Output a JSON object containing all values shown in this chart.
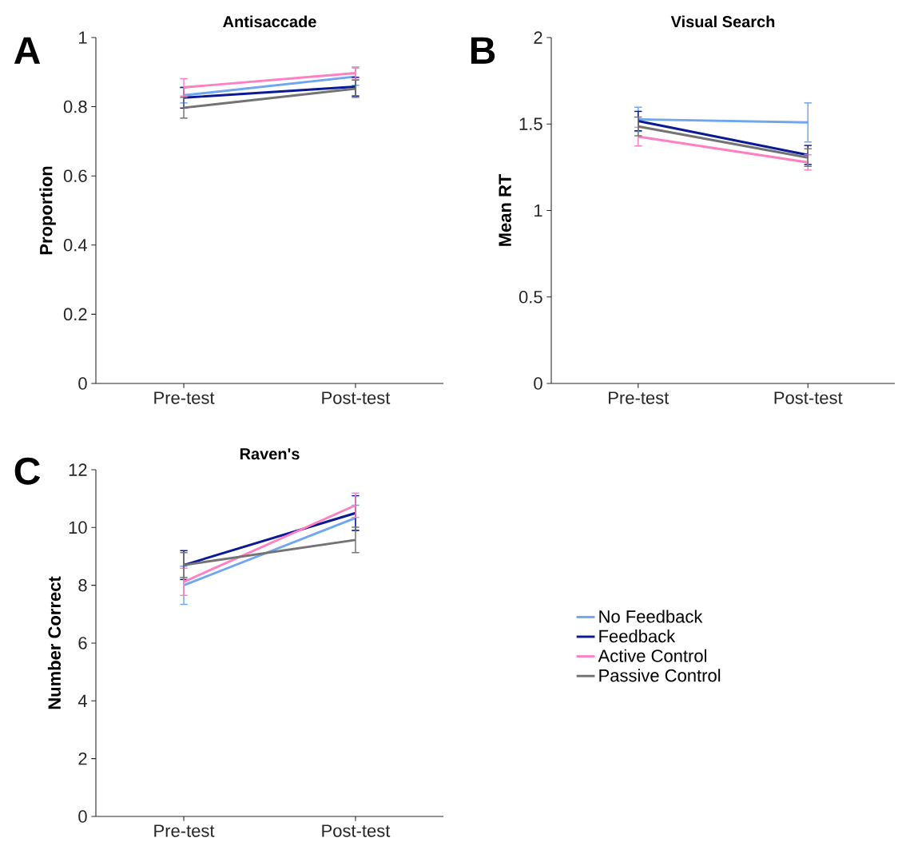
{
  "chart_data": [
    {
      "type": "line",
      "title": "Antisaccade",
      "ylabel": "Proportion",
      "annotations": [
        "A"
      ],
      "categories": [
        "Pre-test",
        "Post-test"
      ],
      "ylim": [
        0,
        1
      ],
      "yticks": [
        0,
        0.2,
        0.4,
        0.6,
        0.8,
        1
      ],
      "grid": false,
      "series": [
        {
          "color": "#6ea6f0",
          "values": [
            0.833,
            0.887
          ],
          "errors": [
            0.022,
            0.025
          ]
        },
        {
          "color": "#0a1a96",
          "values": [
            0.826,
            0.858
          ],
          "errors": [
            0.03,
            0.027
          ]
        },
        {
          "color": "#ff7fc0",
          "values": [
            0.856,
            0.897
          ],
          "errors": [
            0.025,
            0.018
          ]
        },
        {
          "color": "#737373",
          "values": [
            0.797,
            0.852
          ],
          "errors": [
            0.03,
            0.025
          ]
        }
      ]
    },
    {
      "type": "line",
      "title": "Visual Search",
      "ylabel": "Mean RT",
      "annotations": [
        "B"
      ],
      "categories": [
        "Pre-test",
        "Post-test"
      ],
      "ylim": [
        0,
        2
      ],
      "yticks": [
        0,
        0.5,
        1,
        1.5,
        2
      ],
      "grid": false,
      "series": [
        {
          "color": "#6ea6f0",
          "values": [
            1.527,
            1.509
          ],
          "errors": [
            0.07,
            0.113
          ]
        },
        {
          "color": "#0a1a96",
          "values": [
            1.517,
            1.321
          ],
          "errors": [
            0.056,
            0.055
          ]
        },
        {
          "color": "#ff7fc0",
          "values": [
            1.427,
            1.278
          ],
          "errors": [
            0.054,
            0.044
          ]
        },
        {
          "color": "#737373",
          "values": [
            1.486,
            1.306
          ],
          "errors": [
            0.054,
            0.051
          ]
        }
      ]
    },
    {
      "type": "line",
      "title": "Raven's",
      "ylabel": "Number Correct",
      "annotations": [
        "C"
      ],
      "categories": [
        "Pre-test",
        "Post-test"
      ],
      "ylim": [
        0,
        12
      ],
      "yticks": [
        0,
        2,
        4,
        6,
        8,
        10,
        12
      ],
      "grid": false,
      "legend": "right",
      "series": [
        {
          "name": "No Feedback",
          "color": "#6ea6f0",
          "values": [
            8.0,
            10.33
          ],
          "errors": [
            0.66,
            0.44
          ]
        },
        {
          "name": "Feedback",
          "color": "#0a1a96",
          "values": [
            8.7,
            10.5
          ],
          "errors": [
            0.5,
            0.6
          ]
        },
        {
          "name": "Active Control",
          "color": "#ff7fc0",
          "values": [
            8.12,
            10.77
          ],
          "errors": [
            0.47,
            0.42
          ]
        },
        {
          "name": "Passive Control",
          "color": "#737373",
          "values": [
            8.7,
            9.57
          ],
          "errors": [
            0.43,
            0.44
          ]
        }
      ]
    }
  ]
}
